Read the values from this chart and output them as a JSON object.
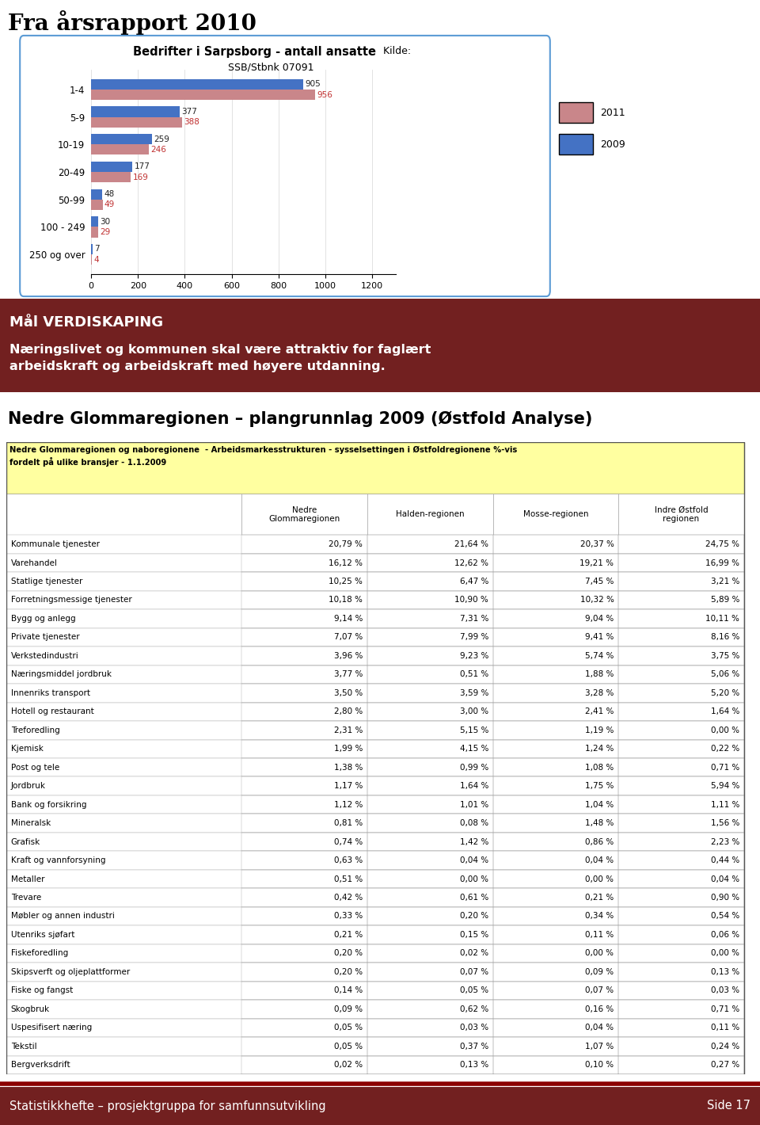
{
  "title_top": "Fra årsrapport 2010",
  "chart_title_bold": "Bedrifter i Sarpsborg - antall ansatte",
  "chart_title_normal": " Kilde:",
  "chart_subtitle": "SSB/Stbnk 07091",
  "categories": [
    "1-4",
    "5-9",
    "10-19",
    "20-49",
    "50-99",
    "100 - 249",
    "250 og over"
  ],
  "values_2011": [
    956,
    388,
    246,
    169,
    49,
    29,
    4
  ],
  "values_2009": [
    905,
    377,
    259,
    177,
    48,
    30,
    7
  ],
  "bar_color_2011": "#C9868A",
  "bar_color_2009": "#4472C4",
  "legend_2011": "2011",
  "legend_2009": "2009",
  "maal_title": "Mål VERDISKAPING",
  "maal_text": "Næringslivet og kommunen skal være attraktiv for faglært\narbeidskraft og arbeidskraft med høyere utdanning.",
  "maal_bg": "#722020",
  "section_title": "Nedre Glommaregionen – plangrunnlag 2009 (Østfold Analyse)",
  "table_header_bg": "#FFFFA0",
  "table_header_text": "Nedre Glommaregionen og naboregionene  - Arbeidsmarkesstrukturen - sysselsettingen i Østfoldregionene %-vis\nfordelt på ulike bransjer - 1.1.2009",
  "col_headers": [
    "Nedre\nGlommaregionen",
    "Halden-regionen",
    "Mosse-regionen",
    "Indre Østfold\nregionen"
  ],
  "rows": [
    [
      "Kommunale tjenester",
      "20,79 %",
      "21,64 %",
      "20,37 %",
      "24,75 %"
    ],
    [
      "Varehandel",
      "16,12 %",
      "12,62 %",
      "19,21 %",
      "16,99 %"
    ],
    [
      "Statlige tjenester",
      "10,25 %",
      "6,47 %",
      "7,45 %",
      "3,21 %"
    ],
    [
      "Forretningsmessige tjenester",
      "10,18 %",
      "10,90 %",
      "10,32 %",
      "5,89 %"
    ],
    [
      "Bygg og anlegg",
      "9,14 %",
      "7,31 %",
      "9,04 %",
      "10,11 %"
    ],
    [
      "Private tjenester",
      "7,07 %",
      "7,99 %",
      "9,41 %",
      "8,16 %"
    ],
    [
      "Verkstedindustri",
      "3,96 %",
      "9,23 %",
      "5,74 %",
      "3,75 %"
    ],
    [
      "Næringsmiddel jordbruk",
      "3,77 %",
      "0,51 %",
      "1,88 %",
      "5,06 %"
    ],
    [
      "Innenriks transport",
      "3,50 %",
      "3,59 %",
      "3,28 %",
      "5,20 %"
    ],
    [
      "Hotell og restaurant",
      "2,80 %",
      "3,00 %",
      "2,41 %",
      "1,64 %"
    ],
    [
      "Treforedling",
      "2,31 %",
      "5,15 %",
      "1,19 %",
      "0,00 %"
    ],
    [
      "Kjemisk",
      "1,99 %",
      "4,15 %",
      "1,24 %",
      "0,22 %"
    ],
    [
      "Post og tele",
      "1,38 %",
      "0,99 %",
      "1,08 %",
      "0,71 %"
    ],
    [
      "Jordbruk",
      "1,17 %",
      "1,64 %",
      "1,75 %",
      "5,94 %"
    ],
    [
      "Bank og forsikring",
      "1,12 %",
      "1,01 %",
      "1,04 %",
      "1,11 %"
    ],
    [
      "Mineralsk",
      "0,81 %",
      "0,08 %",
      "1,48 %",
      "1,56 %"
    ],
    [
      "Grafisk",
      "0,74 %",
      "1,42 %",
      "0,86 %",
      "2,23 %"
    ],
    [
      "Kraft og vannforsyning",
      "0,63 %",
      "0,04 %",
      "0,04 %",
      "0,44 %"
    ],
    [
      "Metaller",
      "0,51 %",
      "0,00 %",
      "0,00 %",
      "0,04 %"
    ],
    [
      "Trevare",
      "0,42 %",
      "0,61 %",
      "0,21 %",
      "0,90 %"
    ],
    [
      "Møbler og annen industri",
      "0,33 %",
      "0,20 %",
      "0,34 %",
      "0,54 %"
    ],
    [
      "Utenriks sjøfart",
      "0,21 %",
      "0,15 %",
      "0,11 %",
      "0,06 %"
    ],
    [
      "Fiskeforedling",
      "0,20 %",
      "0,02 %",
      "0,00 %",
      "0,00 %"
    ],
    [
      "Skipsverft og oljeplattformer",
      "0,20 %",
      "0,07 %",
      "0,09 %",
      "0,13 %"
    ],
    [
      "Fiske og fangst",
      "0,14 %",
      "0,05 %",
      "0,07 %",
      "0,03 %"
    ],
    [
      "Skogbruk",
      "0,09 %",
      "0,62 %",
      "0,16 %",
      "0,71 %"
    ],
    [
      "Uspesifisert næring",
      "0,05 %",
      "0,03 %",
      "0,04 %",
      "0,11 %"
    ],
    [
      "Tekstil",
      "0,05 %",
      "0,37 %",
      "1,07 %",
      "0,24 %"
    ],
    [
      "Bergverksdrift",
      "0,02 %",
      "0,13 %",
      "0,10 %",
      "0,27 %"
    ]
  ],
  "footer_left": "Statistikkhefte – prosjektgruppa for samfunnsutvikling",
  "footer_right": "Side 17",
  "footer_bg": "#722020",
  "chart_border_color": "#5B9BD5",
  "sep_line_color": "#8B0000"
}
